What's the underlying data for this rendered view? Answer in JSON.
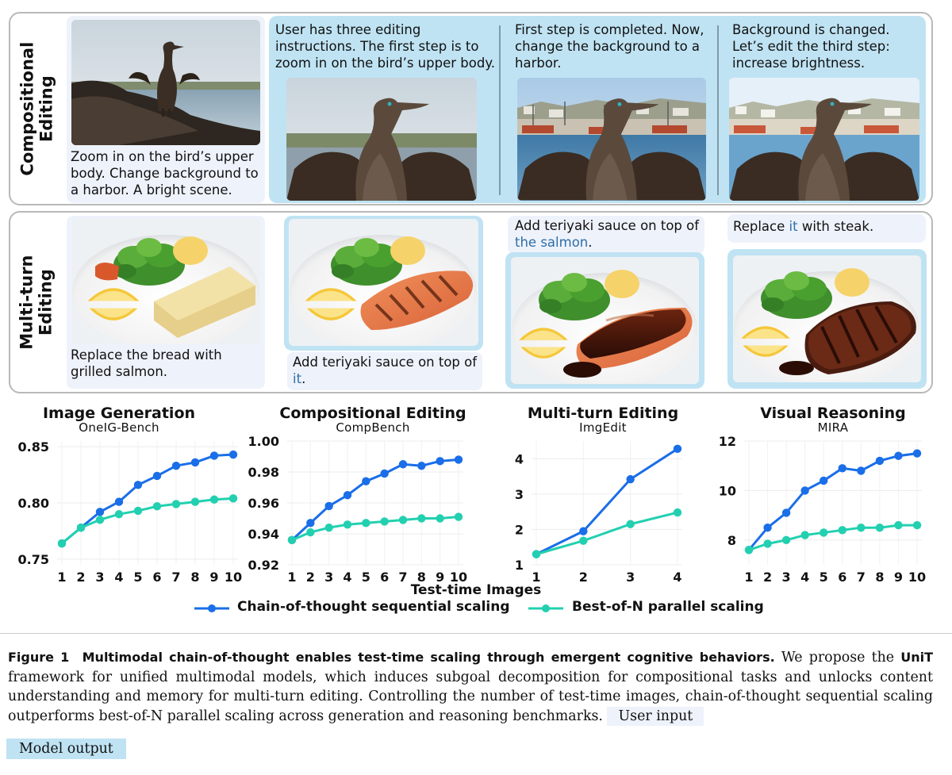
{
  "compositional": {
    "label_line1": "Compositional",
    "label_line2": "Editing",
    "user_text": "Zoom in on the bird’s upper body. Change background to a harbor. A bright scene.",
    "steps": [
      "User has three editing instructions. The first step is to zoom in on the bird’s upper body.",
      "First step is completed. Now, change the background to a harbor.",
      "Background is changed. Let’s edit the third step: increase brightness."
    ]
  },
  "multiturn": {
    "label_line1": "Multi-turn",
    "label_line2": "Editing",
    "turn1": "Replace the bread with grilled salmon.",
    "turn2_pre": "Add teriyaki sauce on top of ",
    "turn2_hl": "it",
    "turn2_post": ".",
    "turn3_pre": "Add teriyaki sauce on top of ",
    "turn3_hl": "the salmon",
    "turn3_post": ".",
    "turn4_pre": "Replace ",
    "turn4_hl": "it",
    "turn4_post": " with steak."
  },
  "colors": {
    "cot": "#1a6ee8",
    "bon": "#22d0b0",
    "model_bg": "#bfe3f3",
    "user_bg": "#eef2fb"
  },
  "chart_data": [
    {
      "type": "line",
      "title": "Image Generation",
      "subtitle": "OneIG-Bench",
      "x": [
        1,
        2,
        3,
        4,
        5,
        6,
        7,
        8,
        9,
        10
      ],
      "ylim": [
        0.745,
        0.855
      ],
      "yticks": [
        "0.75",
        "0.80",
        "0.85"
      ],
      "series": [
        {
          "name": "Chain-of-thought sequential scaling",
          "values": [
            0.764,
            0.778,
            0.792,
            0.801,
            0.816,
            0.824,
            0.833,
            0.836,
            0.842,
            0.843
          ]
        },
        {
          "name": "Best-of-N parallel scaling",
          "values": [
            0.764,
            0.778,
            0.785,
            0.79,
            0.793,
            0.797,
            0.799,
            0.801,
            0.803,
            0.804
          ]
        }
      ]
    },
    {
      "type": "line",
      "title": "Compositional Editing",
      "subtitle": "CompBench",
      "x": [
        1,
        2,
        3,
        4,
        5,
        6,
        7,
        8,
        9,
        10
      ],
      "ylim": [
        0.92,
        1.0
      ],
      "yticks": [
        "0.92",
        "0.94",
        "0.96",
        "0.98",
        "1.00"
      ],
      "series": [
        {
          "name": "Chain-of-thought sequential scaling",
          "values": [
            0.936,
            0.947,
            0.958,
            0.965,
            0.974,
            0.979,
            0.985,
            0.984,
            0.987,
            0.988
          ]
        },
        {
          "name": "Best-of-N parallel scaling",
          "values": [
            0.936,
            0.941,
            0.944,
            0.946,
            0.947,
            0.948,
            0.949,
            0.95,
            0.95,
            0.951
          ]
        }
      ]
    },
    {
      "type": "line",
      "title": "Multi-turn Editing",
      "subtitle": "ImgEdit",
      "x": [
        1,
        2,
        3,
        4
      ],
      "ylim": [
        1,
        4.5
      ],
      "yticks": [
        "1",
        "2",
        "3",
        "4"
      ],
      "series": [
        {
          "name": "Chain-of-thought sequential scaling",
          "values": [
            1.3,
            1.95,
            3.42,
            4.28
          ]
        },
        {
          "name": "Best-of-N parallel scaling",
          "values": [
            1.3,
            1.68,
            2.15,
            2.48
          ]
        }
      ]
    },
    {
      "type": "line",
      "title": "Visual Reasoning",
      "subtitle": "MIRA",
      "x": [
        1,
        2,
        3,
        4,
        5,
        6,
        7,
        8,
        9,
        10
      ],
      "ylim": [
        7.0,
        12.0
      ],
      "yticks": [
        "8",
        "10",
        "12"
      ],
      "series": [
        {
          "name": "Chain-of-thought sequential scaling",
          "values": [
            7.6,
            8.5,
            9.1,
            10.0,
            10.4,
            10.9,
            10.8,
            11.2,
            11.4,
            11.5
          ]
        },
        {
          "name": "Best-of-N parallel scaling",
          "values": [
            7.6,
            7.85,
            8.0,
            8.2,
            8.3,
            8.4,
            8.5,
            8.5,
            8.6,
            8.6
          ]
        }
      ]
    }
  ],
  "xlabel": "Test-time Images",
  "legend": {
    "cot": "Chain-of-thought sequential scaling",
    "bon": "Best-of-N parallel scaling"
  },
  "caption": {
    "label": "Figure 1",
    "title": "Multimodal chain-of-thought enables test-time scaling through emergent cognitive behaviors.",
    "text1": " We propose the ",
    "unit": "UniT",
    "text2": " framework for unified multimodal models, which induces subgoal decomposition for compositional tasks and unlocks content understanding and memory for multi-turn editing. Controlling the number of test-time images, chain-of-thought sequential scaling outperforms best-of-N parallel scaling across generation and reasoning benchmarks. ",
    "user_tag": "User input",
    "model_tag": "Model output"
  }
}
